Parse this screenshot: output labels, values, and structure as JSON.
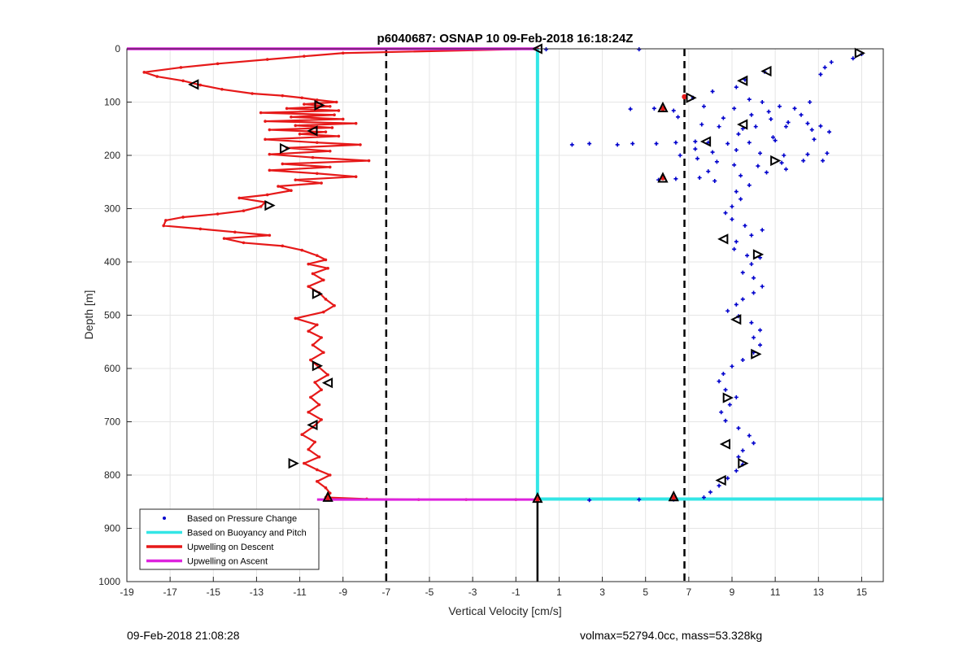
{
  "chart_data": {
    "type": "scatter",
    "title": "p6040687: OSNAP 10 09-Feb-2018 16:18:24Z",
    "xlabel": "Vertical Velocity [cm/s]",
    "ylabel": "Depth [m]",
    "xlim": [
      -19,
      16
    ],
    "ylim": [
      0,
      1000
    ],
    "y_reversed": true,
    "grid": true,
    "legend_location": "bottom-left",
    "x_ticks": [
      "-19",
      "-17",
      "-15",
      "-13",
      "-11",
      "-9",
      "-7",
      "-5",
      "-3",
      "-1",
      "1",
      "3",
      "5",
      "7",
      "9",
      "11",
      "13",
      "15"
    ],
    "y_ticks": [
      "0",
      "100",
      "200",
      "300",
      "400",
      "500",
      "600",
      "700",
      "800",
      "900",
      "1000"
    ],
    "colors": {
      "pressure": "#0000cc",
      "buoyancy": "#33e6e6",
      "descent": "#e61919",
      "ascent": "#dd22dd",
      "thresholds": "#000000"
    },
    "threshold_lines_x": [
      -7,
      6.8
    ],
    "series": [
      {
        "name": "Based on Pressure Change",
        "style": "dots",
        "points": [
          [
            15.0,
            10
          ],
          [
            14.6,
            18
          ],
          [
            13.6,
            25
          ],
          [
            13.3,
            35
          ],
          [
            13.1,
            48
          ],
          [
            10.5,
            43
          ],
          [
            9.6,
            58
          ],
          [
            9.2,
            72
          ],
          [
            8.1,
            80
          ],
          [
            7.2,
            92
          ],
          [
            9.8,
            95
          ],
          [
            10.4,
            100
          ],
          [
            11.2,
            108
          ],
          [
            12.6,
            100
          ],
          [
            11.9,
            112
          ],
          [
            12.2,
            124
          ],
          [
            10.7,
            118
          ],
          [
            9.9,
            124
          ],
          [
            9.1,
            112
          ],
          [
            7.7,
            108
          ],
          [
            6.3,
            116
          ],
          [
            5.4,
            112
          ],
          [
            4.3,
            113
          ],
          [
            6.5,
            128
          ],
          [
            8.6,
            130
          ],
          [
            10.8,
            132
          ],
          [
            11.6,
            138
          ],
          [
            12.5,
            140
          ],
          [
            13.1,
            145
          ],
          [
            12.7,
            152
          ],
          [
            13.5,
            156
          ],
          [
            11.5,
            146
          ],
          [
            10.1,
            146
          ],
          [
            9.5,
            150
          ],
          [
            8.4,
            146
          ],
          [
            7.6,
            142
          ],
          [
            9.3,
            160
          ],
          [
            10.9,
            166
          ],
          [
            12.8,
            170
          ],
          [
            11.0,
            172
          ],
          [
            9.8,
            176
          ],
          [
            8.8,
            178
          ],
          [
            7.9,
            176
          ],
          [
            7.3,
            174
          ],
          [
            6.4,
            176
          ],
          [
            5.5,
            178
          ],
          [
            4.4,
            178
          ],
          [
            3.7,
            180
          ],
          [
            2.4,
            178
          ],
          [
            1.6,
            180
          ],
          [
            7.3,
            188
          ],
          [
            8.1,
            194
          ],
          [
            9.2,
            190
          ],
          [
            10.3,
            196
          ],
          [
            11.4,
            200
          ],
          [
            12.5,
            198
          ],
          [
            13.4,
            196
          ],
          [
            13.2,
            210
          ],
          [
            12.3,
            210
          ],
          [
            11.3,
            214
          ],
          [
            10.2,
            220
          ],
          [
            9.1,
            218
          ],
          [
            8.3,
            212
          ],
          [
            7.4,
            206
          ],
          [
            6.6,
            200
          ],
          [
            7.9,
            230
          ],
          [
            9.4,
            238
          ],
          [
            10.6,
            232
          ],
          [
            11.5,
            226
          ],
          [
            8.2,
            248
          ],
          [
            7.5,
            242
          ],
          [
            6.4,
            244
          ],
          [
            5.6,
            246
          ],
          [
            9.8,
            256
          ],
          [
            9.2,
            268
          ],
          [
            9.4,
            282
          ],
          [
            9.0,
            296
          ],
          [
            8.7,
            308
          ],
          [
            9.0,
            320
          ],
          [
            9.6,
            332
          ],
          [
            10.4,
            340
          ],
          [
            9.9,
            350
          ],
          [
            9.2,
            362
          ],
          [
            9.1,
            376
          ],
          [
            9.7,
            388
          ],
          [
            10.3,
            392
          ],
          [
            9.9,
            404
          ],
          [
            9.5,
            420
          ],
          [
            10.0,
            430
          ],
          [
            10.4,
            446
          ],
          [
            10.0,
            458
          ],
          [
            9.5,
            470
          ],
          [
            9.2,
            480
          ],
          [
            8.8,
            492
          ],
          [
            9.3,
            502
          ],
          [
            9.9,
            514
          ],
          [
            10.3,
            528
          ],
          [
            10.0,
            542
          ],
          [
            10.3,
            556
          ],
          [
            10.0,
            570
          ],
          [
            9.5,
            584
          ],
          [
            9.0,
            596
          ],
          [
            8.6,
            610
          ],
          [
            8.4,
            624
          ],
          [
            8.7,
            640
          ],
          [
            9.2,
            654
          ],
          [
            8.9,
            668
          ],
          [
            8.5,
            682
          ],
          [
            8.7,
            698
          ],
          [
            9.3,
            712
          ],
          [
            9.8,
            726
          ],
          [
            10.0,
            740
          ],
          [
            9.5,
            754
          ],
          [
            9.3,
            766
          ],
          [
            9.5,
            780
          ],
          [
            9.2,
            792
          ],
          [
            8.8,
            806
          ],
          [
            8.4,
            820
          ],
          [
            8.0,
            832
          ],
          [
            7.7,
            842
          ],
          [
            6.3,
            846
          ],
          [
            4.7,
            846
          ],
          [
            2.4,
            847
          ],
          [
            4.7,
            1
          ],
          [
            0.4,
            1
          ]
        ]
      },
      {
        "name": "Based on Buoyancy and Pitch",
        "style": "line",
        "points": [
          [
            0.0,
            0
          ],
          [
            0.0,
            845
          ],
          [
            16,
            845
          ]
        ]
      },
      {
        "name": "Upwelling on Descent",
        "style": "line-markers",
        "points": [
          [
            0.0,
            0
          ],
          [
            -9,
            8
          ],
          [
            -10.8,
            14
          ],
          [
            -12.5,
            20
          ],
          [
            -14.8,
            28
          ],
          [
            -16.5,
            35
          ],
          [
            -18.2,
            44
          ],
          [
            -17.6,
            52
          ],
          [
            -16.4,
            60
          ],
          [
            -15.6,
            68
          ],
          [
            -14.6,
            76
          ],
          [
            -13.2,
            84
          ],
          [
            -11.8,
            88
          ],
          [
            -10.9,
            92
          ],
          [
            -10.2,
            96
          ],
          [
            -9.3,
            100
          ],
          [
            -10.8,
            104
          ],
          [
            -9.6,
            108
          ],
          [
            -11.6,
            112
          ],
          [
            -9.2,
            116
          ],
          [
            -12.8,
            120
          ],
          [
            -9.4,
            124
          ],
          [
            -11.4,
            128
          ],
          [
            -9.0,
            132
          ],
          [
            -12.6,
            136
          ],
          [
            -8.4,
            140
          ],
          [
            -11.2,
            144
          ],
          [
            -9.5,
            148
          ],
          [
            -12.4,
            152
          ],
          [
            -9.8,
            156
          ],
          [
            -11.0,
            160
          ],
          [
            -9.2,
            164
          ],
          [
            -12.6,
            170
          ],
          [
            -10.2,
            176
          ],
          [
            -8.2,
            180
          ],
          [
            -11.6,
            186
          ],
          [
            -9.6,
            192
          ],
          [
            -12.4,
            198
          ],
          [
            -10.4,
            204
          ],
          [
            -7.8,
            210
          ],
          [
            -11.8,
            216
          ],
          [
            -9.6,
            222
          ],
          [
            -12.4,
            228
          ],
          [
            -10.2,
            234
          ],
          [
            -8.4,
            240
          ],
          [
            -11.2,
            246
          ],
          [
            -10.0,
            252
          ],
          [
            -12.0,
            258
          ],
          [
            -11.4,
            266
          ],
          [
            -12.5,
            274
          ],
          [
            -13.8,
            280
          ],
          [
            -12.6,
            288
          ],
          [
            -12.8,
            296
          ],
          [
            -13.6,
            304
          ],
          [
            -14.8,
            310
          ],
          [
            -16.4,
            316
          ],
          [
            -17.2,
            322
          ],
          [
            -17.3,
            332
          ],
          [
            -15.6,
            338
          ],
          [
            -14.0,
            344
          ],
          [
            -12.4,
            350
          ],
          [
            -14.5,
            356
          ],
          [
            -13.6,
            364
          ],
          [
            -11.8,
            370
          ],
          [
            -10.9,
            378
          ],
          [
            -10.2,
            388
          ],
          [
            -9.8,
            396
          ],
          [
            -10.6,
            404
          ],
          [
            -9.7,
            412
          ],
          [
            -10.4,
            422
          ],
          [
            -9.9,
            434
          ],
          [
            -10.6,
            446
          ],
          [
            -10.1,
            458
          ],
          [
            -9.8,
            470
          ],
          [
            -9.4,
            482
          ],
          [
            -9.9,
            494
          ],
          [
            -11.2,
            506
          ],
          [
            -10.2,
            518
          ],
          [
            -10.6,
            530
          ],
          [
            -10.0,
            542
          ],
          [
            -10.4,
            556
          ],
          [
            -9.9,
            570
          ],
          [
            -10.5,
            584
          ],
          [
            -10.1,
            598
          ],
          [
            -9.7,
            612
          ],
          [
            -10.3,
            626
          ],
          [
            -10.0,
            640
          ],
          [
            -10.5,
            654
          ],
          [
            -10.1,
            668
          ],
          [
            -10.6,
            682
          ],
          [
            -10.0,
            696
          ],
          [
            -10.4,
            710
          ],
          [
            -10.9,
            724
          ],
          [
            -10.3,
            738
          ],
          [
            -10.6,
            752
          ],
          [
            -10.1,
            766
          ],
          [
            -10.8,
            778
          ],
          [
            -10.2,
            790
          ],
          [
            -9.6,
            800
          ],
          [
            -10.2,
            812
          ],
          [
            -9.8,
            824
          ],
          [
            -9.6,
            834
          ],
          [
            -9.8,
            842
          ],
          [
            -7.9,
            845
          ],
          [
            -5.5,
            846
          ],
          [
            -3.3,
            846
          ],
          [
            -1.0,
            846
          ],
          [
            0.0,
            846
          ]
        ]
      },
      {
        "name": "Upwelling on Ascent",
        "style": "line",
        "points": [
          [
            -19,
            0
          ],
          [
            0.0,
            0
          ],
          [
            0.0,
            1000
          ],
          [
            -19,
            846
          ],
          [
            0.0,
            846
          ]
        ]
      }
    ],
    "markers": [
      {
        "x": 0.0,
        "y": 0,
        "dir": "left"
      },
      {
        "x": 14.9,
        "y": 8,
        "dir": "right"
      },
      {
        "x": 10.6,
        "y": 42,
        "dir": "left"
      },
      {
        "x": 9.5,
        "y": 60,
        "dir": "left"
      },
      {
        "x": -15.9,
        "y": 67,
        "dir": "left"
      },
      {
        "x": 7.1,
        "y": 92,
        "dir": "right"
      },
      {
        "x": -10.1,
        "y": 106,
        "dir": "right"
      },
      {
        "x": 5.8,
        "y": 110,
        "dir": "up"
      },
      {
        "x": 9.5,
        "y": 142,
        "dir": "left"
      },
      {
        "x": -10.4,
        "y": 154,
        "dir": "left"
      },
      {
        "x": 7.8,
        "y": 174,
        "dir": "left"
      },
      {
        "x": -11.7,
        "y": 187,
        "dir": "right"
      },
      {
        "x": 11.0,
        "y": 210,
        "dir": "right"
      },
      {
        "x": 5.8,
        "y": 242,
        "dir": "up"
      },
      {
        "x": -12.4,
        "y": 294,
        "dir": "right"
      },
      {
        "x": 8.6,
        "y": 357,
        "dir": "left"
      },
      {
        "x": 10.2,
        "y": 386,
        "dir": "right"
      },
      {
        "x": -10.2,
        "y": 460,
        "dir": "right"
      },
      {
        "x": 9.2,
        "y": 508,
        "dir": "left"
      },
      {
        "x": 10.1,
        "y": 573,
        "dir": "right"
      },
      {
        "x": -10.2,
        "y": 595,
        "dir": "right"
      },
      {
        "x": -9.7,
        "y": 627,
        "dir": "left"
      },
      {
        "x": 8.8,
        "y": 655,
        "dir": "right"
      },
      {
        "x": -10.4,
        "y": 706,
        "dir": "left"
      },
      {
        "x": 8.7,
        "y": 742,
        "dir": "left"
      },
      {
        "x": 9.5,
        "y": 778,
        "dir": "right"
      },
      {
        "x": -11.3,
        "y": 778,
        "dir": "right"
      },
      {
        "x": 8.5,
        "y": 810,
        "dir": "left"
      },
      {
        "x": 6.3,
        "y": 840,
        "dir": "up"
      },
      {
        "x": -9.7,
        "y": 841,
        "dir": "up"
      },
      {
        "x": 0.0,
        "y": 843,
        "dir": "up"
      }
    ]
  },
  "footer": {
    "left": "09-Feb-2018 21:08:28",
    "right": "volmax=52794.0cc, mass=53.328kg"
  }
}
